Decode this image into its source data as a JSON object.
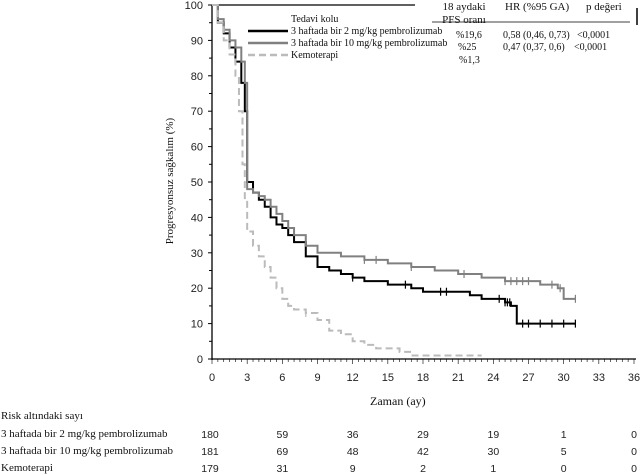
{
  "chart_data": {
    "type": "line",
    "xlabel": "Zaman (ay)",
    "ylabel": "Progresyonsuz sağkalım (%)",
    "xlim": [
      0,
      36
    ],
    "ylim": [
      0,
      100
    ],
    "xticks": [
      0,
      3,
      6,
      9,
      12,
      15,
      18,
      21,
      24,
      27,
      30,
      33,
      36
    ],
    "yticks": [
      0,
      10,
      20,
      30,
      40,
      50,
      60,
      70,
      80,
      90,
      100
    ],
    "legend_title": "Tedavi kolu",
    "legend_placement": "top-right",
    "series": [
      {
        "name": "3 haftada bir 2 mg/kg pembrolizumab",
        "color": "#000000",
        "style": "solid",
        "x": [
          0,
          0.5,
          1,
          1.5,
          2,
          2.5,
          2.8,
          3,
          3.5,
          4,
          4.5,
          5,
          5.5,
          6,
          6.5,
          7,
          8,
          9,
          10,
          11,
          12,
          13,
          14,
          15,
          17,
          18,
          19,
          20,
          21,
          22,
          23,
          24,
          25,
          25.5,
          26,
          27,
          28,
          29,
          30,
          31
        ],
        "y": [
          100,
          95,
          92,
          88,
          84,
          78,
          70,
          50,
          47,
          45,
          43,
          40,
          38,
          37,
          35,
          33,
          29,
          26,
          25,
          24,
          23,
          22,
          22,
          21,
          20,
          19,
          19,
          19,
          19,
          18,
          17,
          17,
          16,
          15,
          10,
          10,
          10,
          10,
          10,
          10
        ],
        "censored_x": [
          12,
          16.5,
          19.5,
          20,
          24.5,
          25,
          25.2,
          25.4,
          26.5,
          27,
          28,
          29,
          30,
          31
        ]
      },
      {
        "name": "3 haftada bir 10 mg/kg pembrolizumab",
        "color": "#808080",
        "style": "solid",
        "x": [
          0,
          0.5,
          1,
          1.5,
          2,
          2.5,
          2.8,
          3,
          3.5,
          4,
          4.5,
          5,
          5.5,
          6,
          6.5,
          7,
          8,
          9,
          10,
          11,
          12,
          13,
          15,
          17,
          18,
          19,
          21,
          23,
          24,
          25,
          26,
          27,
          28,
          29,
          29.5,
          30,
          31
        ],
        "y": [
          100,
          96,
          93,
          90,
          88,
          84,
          78,
          48,
          47,
          46,
          45,
          43,
          41,
          39,
          37,
          35,
          32,
          30,
          30,
          29,
          29,
          28,
          27,
          26,
          26,
          25,
          24,
          23,
          23,
          22,
          22,
          22,
          21,
          21,
          20,
          17,
          17
        ],
        "censored_x": [
          13,
          14,
          17,
          21.5,
          25,
          25.5,
          26,
          26.5,
          27,
          29,
          29.7,
          31
        ]
      },
      {
        "name": "Kemoterapi",
        "color": "#bbbbbb",
        "style": "dashed",
        "x": [
          0,
          0.5,
          1,
          1.5,
          2,
          2.3,
          2.6,
          2.8,
          3,
          3.5,
          4,
          4.5,
          5,
          5.5,
          6,
          6.5,
          7,
          8,
          9,
          10,
          11,
          12,
          13,
          14,
          15,
          16,
          17,
          18,
          19,
          20,
          21,
          22,
          23
        ],
        "y": [
          100,
          95,
          90,
          86,
          80,
          70,
          55,
          45,
          36,
          32,
          29,
          26,
          23,
          20,
          17,
          15,
          14,
          13,
          11,
          8,
          7,
          5,
          4,
          3,
          3,
          2,
          1,
          1,
          1,
          1,
          1,
          1,
          1
        ],
        "censored_x": [
          8
        ]
      }
    ]
  },
  "table": {
    "headers": [
      "18 aydaki PFS oranı",
      "HR (%95 GA)",
      "p değeri"
    ],
    "rows": [
      [
        "%19,6",
        "0,58 (0,46, 0,73)",
        "<0,0001"
      ],
      [
        "%25",
        "0,47 (0,37, 0,6)",
        "<0,0001"
      ],
      [
        "%1,3",
        "",
        ""
      ]
    ]
  },
  "risk": {
    "title": "Risk altındaki sayı",
    "times": [
      0,
      6,
      12,
      18,
      24,
      30,
      36
    ],
    "rows": [
      {
        "label": "3 haftada bir 2 mg/kg pembrolizumab",
        "values": [
          "180",
          "59",
          "36",
          "29",
          "19",
          "1",
          "0"
        ]
      },
      {
        "label": "3 haftada bir 10 mg/kg pembrolizumab",
        "values": [
          "181",
          "69",
          "48",
          "42",
          "30",
          "5",
          "0"
        ]
      },
      {
        "label": "Kemoterapi",
        "values": [
          "179",
          "31",
          "9",
          "2",
          "1",
          "0",
          "0"
        ]
      }
    ]
  }
}
